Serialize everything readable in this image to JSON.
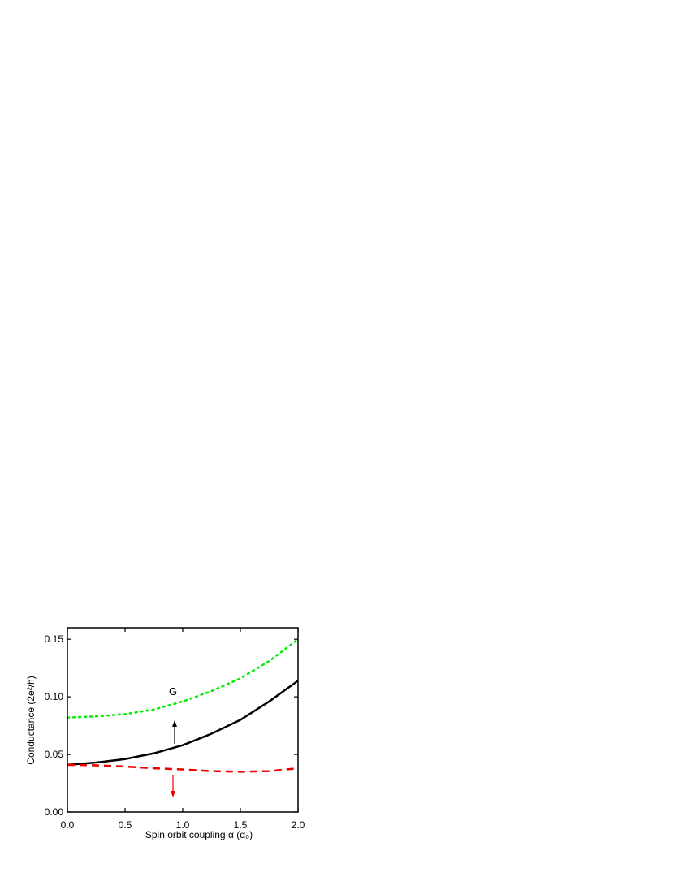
{
  "chart_data": {
    "type": "line",
    "xlabel": "Spin orbit coupling α (α₀)",
    "ylabel": "Conductance (2e²/h)",
    "annotations": [
      "G"
    ],
    "x": [
      0,
      0.25,
      0.5,
      0.75,
      1.0,
      1.25,
      1.5,
      1.75,
      2.0
    ],
    "series": [
      {
        "name": "G",
        "color": "#00ee00",
        "style": "dotted",
        "values": [
          0.082,
          0.083,
          0.085,
          0.089,
          0.096,
          0.105,
          0.116,
          0.131,
          0.15
        ]
      },
      {
        "name": "G↑",
        "color": "#000000",
        "style": "solid",
        "values": [
          0.041,
          0.043,
          0.046,
          0.051,
          0.058,
          0.068,
          0.08,
          0.096,
          0.114
        ]
      },
      {
        "name": "G↓",
        "color": "#ee0000",
        "style": "dashed",
        "values": [
          0.041,
          0.0405,
          0.0395,
          0.038,
          0.037,
          0.0355,
          0.035,
          0.0355,
          0.038
        ]
      }
    ],
    "xlim": [
      0,
      2
    ],
    "xticks": [
      {
        "value": 0,
        "label": "0.0"
      },
      {
        "value": 0.5,
        "label": "0.5"
      },
      {
        "value": 1,
        "label": "1.0"
      },
      {
        "value": 1.5,
        "label": "1.5"
      },
      {
        "value": 2,
        "label": "2.0"
      }
    ],
    "ylim": [
      0,
      0.16
    ],
    "yticks": [
      {
        "value": 0,
        "label": "0.00"
      },
      {
        "value": 0.05,
        "label": "0.05"
      },
      {
        "value": 0.1,
        "label": "0.10"
      },
      {
        "value": 0.15,
        "label": "0.15"
      }
    ],
    "legend": false
  }
}
